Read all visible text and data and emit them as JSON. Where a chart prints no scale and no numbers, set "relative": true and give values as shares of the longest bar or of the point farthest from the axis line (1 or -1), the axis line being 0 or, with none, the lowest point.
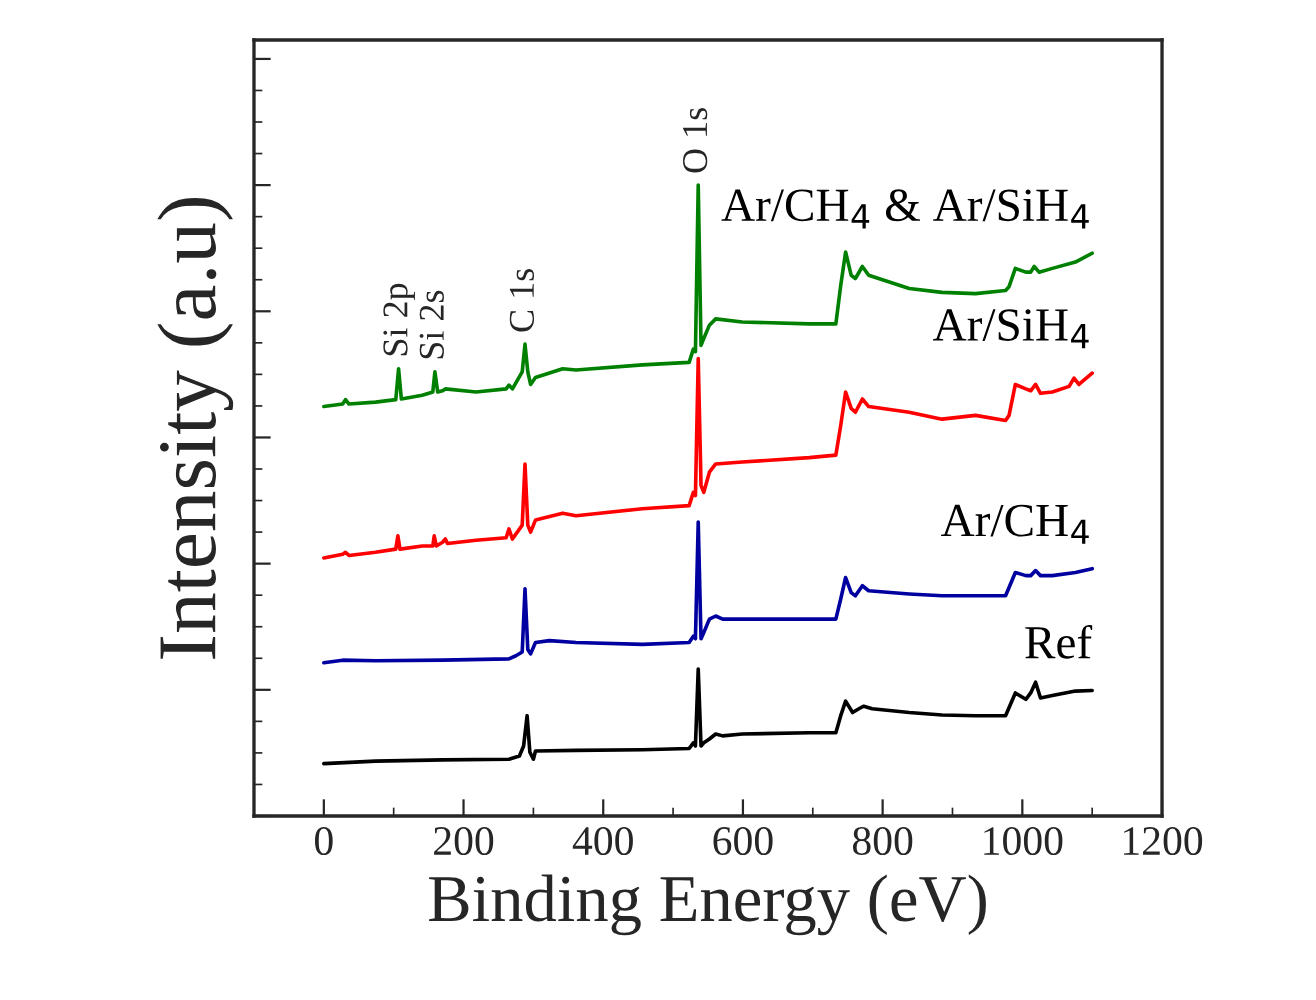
{
  "chart_data": {
    "type": "line",
    "relative": true,
    "xlabel": "Binding Energy (eV)",
    "ylabel": "Intensity (a.u)",
    "xlim": [
      -100,
      1200
    ],
    "xticks": [
      0,
      200,
      400,
      600,
      800,
      1000,
      1200
    ],
    "tick_labels": "x",
    "grid": false,
    "legend": false,
    "marker": "none",
    "line_style": "solid",
    "series": [
      {
        "name": "Ref",
        "color": "#000000",
        "x": [
          0,
          74,
          170,
          265,
          280,
          286,
          291,
          295,
          300,
          303,
          361,
          456,
          523,
          529,
          532,
          536,
          540,
          544,
          552,
          561,
          571,
          599,
          695,
          733,
          740,
          747,
          757,
          766,
          773,
          785,
          838,
          885,
          933,
          976,
          990,
          1005,
          1012,
          1019,
          1026,
          1043,
          1076,
          1100
        ],
        "values": [
          0.083,
          0.087,
          0.089,
          0.09,
          0.095,
          0.111,
          0.159,
          0.101,
          0.09,
          0.103,
          0.104,
          0.105,
          0.107,
          0.116,
          0.111,
          0.233,
          0.111,
          0.116,
          0.122,
          0.13,
          0.127,
          0.13,
          0.132,
          0.132,
          0.159,
          0.182,
          0.164,
          0.17,
          0.174,
          0.17,
          0.164,
          0.16,
          0.159,
          0.159,
          0.195,
          0.185,
          0.195,
          0.212,
          0.187,
          0.191,
          0.198,
          0.199
        ]
      },
      {
        "name": "Ar/CH$_{4}$",
        "color": "#0000a0",
        "x": [
          0,
          27,
          74,
          170,
          265,
          275,
          284,
          288,
          292,
          296,
          303,
          323,
          361,
          456,
          523,
          529,
          532,
          536,
          540,
          544,
          552,
          561,
          571,
          647,
          733,
          740,
          747,
          755,
          761,
          771,
          780,
          838,
          885,
          933,
          976,
          990,
          1005,
          1012,
          1019,
          1026,
          1043,
          1076,
          1100
        ],
        "values": [
          0.243,
          0.247,
          0.246,
          0.247,
          0.249,
          0.254,
          0.26,
          0.36,
          0.264,
          0.257,
          0.275,
          0.278,
          0.275,
          0.272,
          0.275,
          0.285,
          0.281,
          0.466,
          0.281,
          0.291,
          0.312,
          0.317,
          0.312,
          0.312,
          0.312,
          0.344,
          0.378,
          0.354,
          0.349,
          0.365,
          0.357,
          0.352,
          0.349,
          0.349,
          0.349,
          0.386,
          0.381,
          0.381,
          0.389,
          0.381,
          0.381,
          0.386,
          0.392
        ]
      },
      {
        "name": "Ar/SiH$_{4}$",
        "color": "#ff0000",
        "x": [
          0,
          27,
          31,
          36,
          74,
          103,
          106,
          109,
          141,
          156,
          158,
          161,
          170,
          174,
          177,
          218,
          261,
          265,
          270,
          284,
          288,
          292,
          296,
          303,
          342,
          361,
          456,
          523,
          529,
          532,
          536,
          540,
          544,
          552,
          561,
          599,
          695,
          733,
          740,
          747,
          755,
          761,
          771,
          780,
          838,
          885,
          933,
          976,
          981,
          990,
          1005,
          1012,
          1019,
          1026,
          1043,
          1067,
          1074,
          1081,
          1100
        ],
        "values": [
          0.409,
          0.415,
          0.418,
          0.413,
          0.418,
          0.423,
          0.444,
          0.423,
          0.428,
          0.428,
          0.444,
          0.428,
          0.434,
          0.439,
          0.432,
          0.437,
          0.441,
          0.455,
          0.439,
          0.461,
          0.558,
          0.461,
          0.45,
          0.469,
          0.48,
          0.476,
          0.487,
          0.492,
          0.513,
          0.508,
          0.725,
          0.524,
          0.513,
          0.545,
          0.558,
          0.561,
          0.568,
          0.572,
          0.619,
          0.672,
          0.646,
          0.64,
          0.661,
          0.649,
          0.64,
          0.629,
          0.635,
          0.627,
          0.635,
          0.684,
          0.677,
          0.674,
          0.684,
          0.67,
          0.672,
          0.681,
          0.694,
          0.684,
          0.702
        ]
      },
      {
        "name": "Ar/CH$_{4}$ & Ar/SiH$_{4}$",
        "color": "#008000",
        "x": [
          0,
          27,
          31,
          36,
          74,
          103,
          107,
          111,
          141,
          156,
          159,
          163,
          170,
          174,
          218,
          261,
          265,
          270,
          284,
          288,
          292,
          296,
          303,
          342,
          361,
          456,
          523,
          529,
          532,
          536,
          540,
          544,
          552,
          561,
          599,
          695,
          733,
          740,
          747,
          755,
          761,
          771,
          780,
          838,
          885,
          933,
          976,
          981,
          990,
          1005,
          1012,
          1017,
          1024,
          1043,
          1076,
          1100
        ],
        "values": [
          0.649,
          0.653,
          0.66,
          0.653,
          0.656,
          0.66,
          0.709,
          0.661,
          0.667,
          0.672,
          0.704,
          0.672,
          0.674,
          0.677,
          0.672,
          0.677,
          0.683,
          0.677,
          0.704,
          0.748,
          0.704,
          0.684,
          0.695,
          0.709,
          0.707,
          0.715,
          0.719,
          0.74,
          0.736,
          1.0,
          0.746,
          0.757,
          0.778,
          0.788,
          0.783,
          0.78,
          0.78,
          0.841,
          0.894,
          0.857,
          0.852,
          0.871,
          0.857,
          0.836,
          0.83,
          0.828,
          0.833,
          0.839,
          0.868,
          0.862,
          0.862,
          0.871,
          0.862,
          0.868,
          0.878,
          0.892
        ]
      }
    ],
    "annotations": [
      {
        "text": "Si 2p",
        "x": 107,
        "y": 0.709
      },
      {
        "text": "Si 2s",
        "x": 159,
        "y": 0.704
      },
      {
        "text": "C 1s",
        "x": 288,
        "y": 0.748
      },
      {
        "text": "O 1s",
        "x": 536,
        "y": 1.0
      }
    ]
  }
}
